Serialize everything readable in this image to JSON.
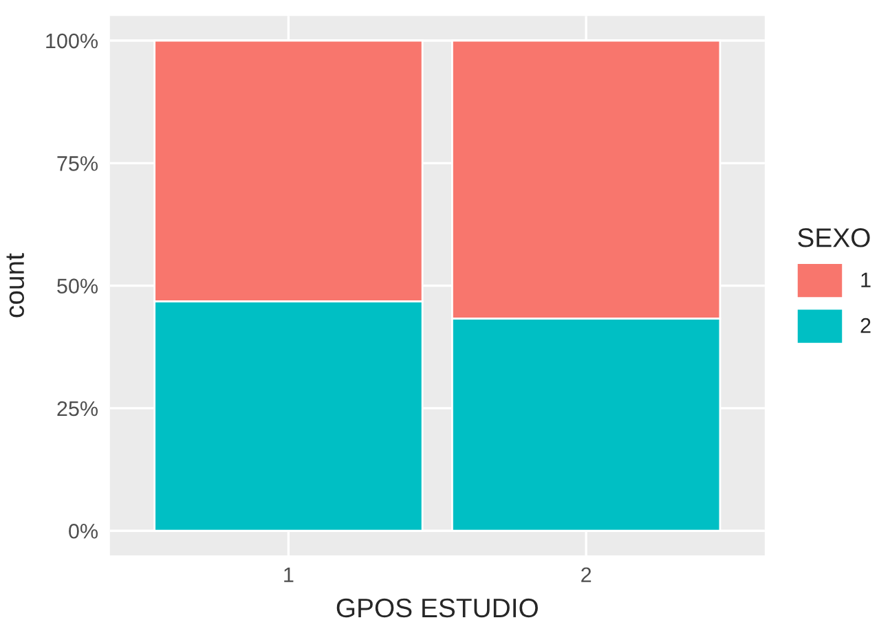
{
  "chart_data": {
    "type": "bar",
    "stacked": true,
    "xlabel": "GPOS ESTUDIO",
    "ylabel": "count",
    "legend_title": "SEXO",
    "categories": [
      "1",
      "2"
    ],
    "series": [
      {
        "name": "2",
        "color": "#00bfc4",
        "values": [
          0.468,
          0.433
        ]
      },
      {
        "name": "1",
        "color": "#f8766d",
        "values": [
          0.532,
          0.567
        ]
      }
    ],
    "ylim": [
      -0.05,
      1.05
    ],
    "yticks": [
      {
        "value": 0,
        "label": "0%"
      },
      {
        "value": 0.25,
        "label": "25%"
      },
      {
        "value": 0.5,
        "label": "50%"
      },
      {
        "value": 0.75,
        "label": "75%"
      },
      {
        "value": 1,
        "label": "100%"
      }
    ],
    "grid": true,
    "legend": "right"
  }
}
